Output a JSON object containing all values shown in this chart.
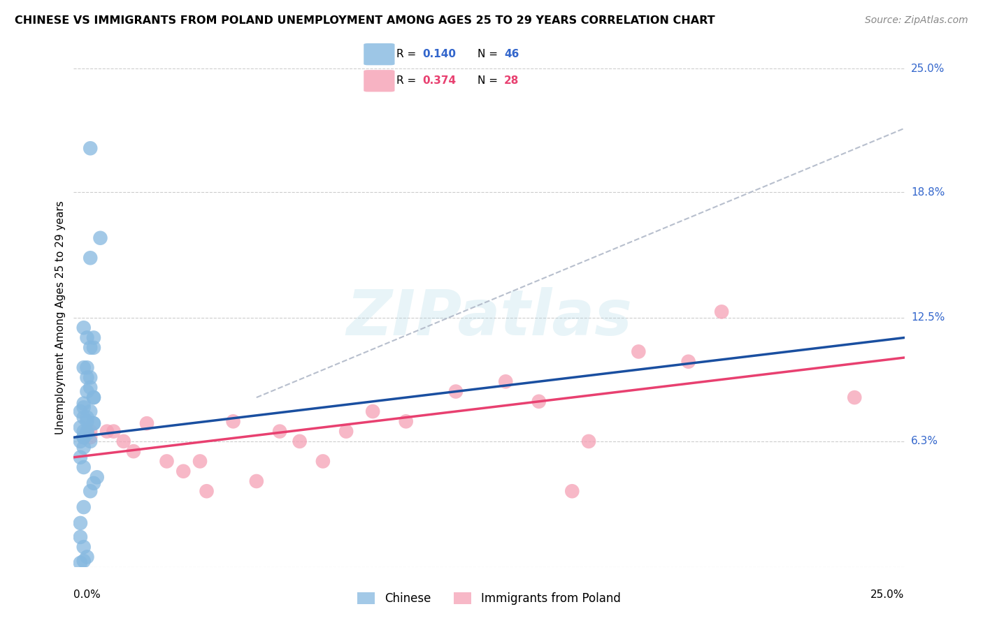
{
  "title": "CHINESE VS IMMIGRANTS FROM POLAND UNEMPLOYMENT AMONG AGES 25 TO 29 YEARS CORRELATION CHART",
  "source": "Source: ZipAtlas.com",
  "ylabel": "Unemployment Among Ages 25 to 29 years",
  "xlim": [
    0.0,
    0.25
  ],
  "ylim": [
    0.0,
    0.25
  ],
  "ytick_vals": [
    0.0,
    0.063,
    0.125,
    0.188,
    0.25
  ],
  "ytick_labels": [
    "",
    "6.3%",
    "12.5%",
    "18.8%",
    "25.0%"
  ],
  "watermark_text": "ZIPatlas",
  "legend1_r1": "0.140",
  "legend1_n1": "46",
  "legend1_r2": "0.374",
  "legend1_n2": "28",
  "legend2_label1": "Chinese",
  "legend2_label2": "Immigrants from Poland",
  "chinese_color": "#85b8e0",
  "poland_color": "#f5a0b5",
  "chinese_line_color": "#1a4fa0",
  "poland_line_color": "#e84070",
  "dashed_line_color": "#b0b8c8",
  "chinese_line_x0": 0.0,
  "chinese_line_y0": 0.065,
  "chinese_line_x1": 0.25,
  "chinese_line_y1": 0.115,
  "poland_line_x0": 0.0,
  "poland_line_y0": 0.055,
  "poland_line_x1": 0.25,
  "poland_line_y1": 0.105,
  "dashed_line_x0": 0.055,
  "dashed_line_y0": 0.085,
  "dashed_line_x1": 0.25,
  "dashed_line_y1": 0.22,
  "chinese_x": [
    0.005,
    0.008,
    0.005,
    0.003,
    0.004,
    0.006,
    0.003,
    0.004,
    0.005,
    0.006,
    0.003,
    0.004,
    0.005,
    0.002,
    0.003,
    0.004,
    0.006,
    0.002,
    0.003,
    0.004,
    0.006,
    0.003,
    0.005,
    0.002,
    0.004,
    0.006,
    0.003,
    0.005,
    0.004,
    0.006,
    0.004,
    0.003,
    0.005,
    0.003,
    0.002,
    0.003,
    0.007,
    0.006,
    0.005,
    0.003,
    0.002,
    0.002,
    0.003,
    0.004,
    0.003,
    0.002
  ],
  "chinese_y": [
    0.21,
    0.165,
    0.155,
    0.12,
    0.115,
    0.11,
    0.1,
    0.095,
    0.09,
    0.085,
    0.082,
    0.1,
    0.095,
    0.078,
    0.075,
    0.073,
    0.115,
    0.07,
    0.068,
    0.067,
    0.072,
    0.065,
    0.11,
    0.063,
    0.088,
    0.085,
    0.08,
    0.078,
    0.075,
    0.072,
    0.068,
    0.065,
    0.063,
    0.06,
    0.055,
    0.05,
    0.045,
    0.042,
    0.038,
    0.03,
    0.022,
    0.015,
    0.01,
    0.005,
    0.003,
    0.002
  ],
  "poland_x": [
    0.005,
    0.01,
    0.015,
    0.018,
    0.022,
    0.028,
    0.033,
    0.038,
    0.048,
    0.055,
    0.062,
    0.068,
    0.075,
    0.082,
    0.09,
    0.1,
    0.115,
    0.13,
    0.14,
    0.155,
    0.17,
    0.185,
    0.195,
    0.235,
    0.005,
    0.012,
    0.04,
    0.15
  ],
  "poland_y": [
    0.068,
    0.068,
    0.063,
    0.058,
    0.072,
    0.053,
    0.048,
    0.053,
    0.073,
    0.043,
    0.068,
    0.063,
    0.053,
    0.068,
    0.078,
    0.073,
    0.088,
    0.093,
    0.083,
    0.063,
    0.108,
    0.103,
    0.128,
    0.085,
    0.065,
    0.068,
    0.038,
    0.038
  ]
}
